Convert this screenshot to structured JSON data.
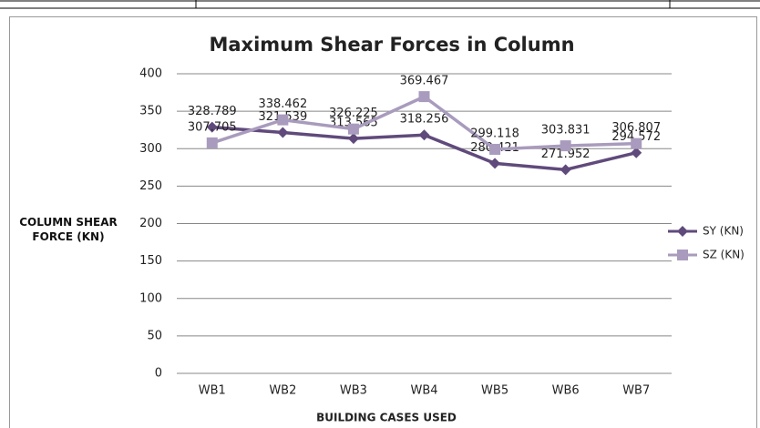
{
  "chart_data": {
    "type": "line",
    "title": "Maximum Shear Forces in Column",
    "x_label": "BUILDING CASES USED",
    "y_label": "COLUMN SHEAR FORCE (KN)",
    "categories": [
      "WB1",
      "WB2",
      "WB3",
      "WB4",
      "WB5",
      "WB6",
      "WB7"
    ],
    "series": [
      {
        "name": "SY (KN)",
        "color": "#604a7b",
        "marker": "diamond",
        "values": [
          328.789,
          321.539,
          313.565,
          318.256,
          280.421,
          271.952,
          294.572
        ]
      },
      {
        "name": "SZ (KN)",
        "color": "#a99bbd",
        "marker": "square",
        "values": [
          307.705,
          338.462,
          326.225,
          369.467,
          299.118,
          303.831,
          306.807
        ]
      }
    ],
    "ylim": [
      0,
      400
    ],
    "yticks": [
      0,
      50,
      100,
      150,
      200,
      250,
      300,
      350,
      400
    ],
    "grid": true,
    "legend": "right"
  }
}
